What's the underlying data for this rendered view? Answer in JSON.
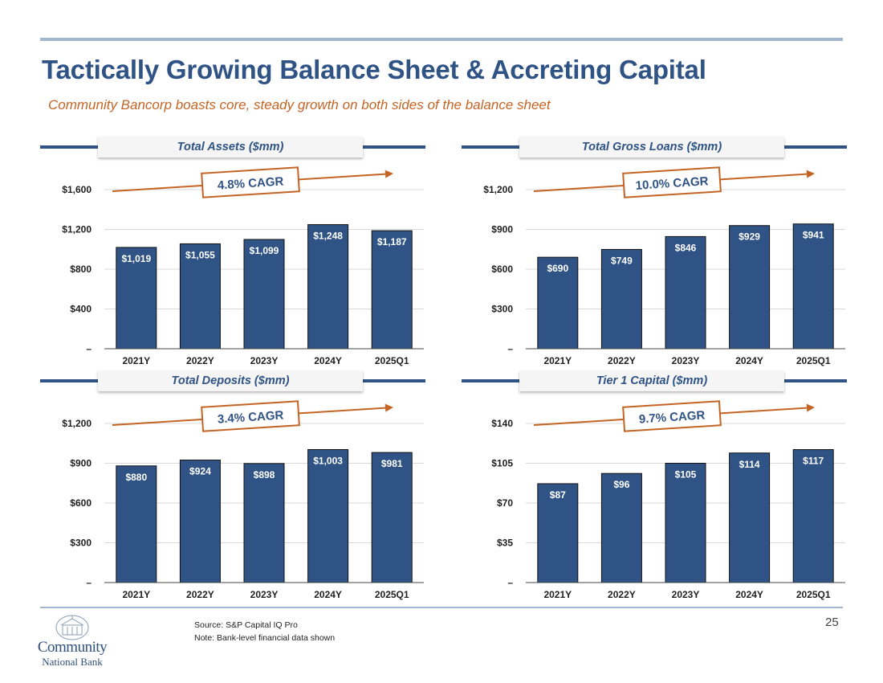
{
  "page": {
    "title": "Tactically Growing Balance Sheet & Accreting Capital",
    "subtitle": "Community Bancorp boasts core, steady growth on both sides of the balance sheet",
    "page_number": "25"
  },
  "footer": {
    "source": "Source: S&P Capital IQ Pro",
    "note": "Note: Bank-level financial data shown"
  },
  "logo": {
    "line1": "Community",
    "line2": "National Bank"
  },
  "colors": {
    "bar": "#2f5385",
    "accent": "#c46424",
    "title": "#2f5385",
    "rule": "#a4b6d2"
  },
  "chart_data": [
    {
      "type": "bar",
      "title": "Total Assets ($mm)",
      "categories": [
        "2021Y",
        "2022Y",
        "2023Y",
        "2024Y",
        "2025Q1"
      ],
      "values": [
        1019,
        1055,
        1099,
        1248,
        1187
      ],
      "value_labels": [
        "$1,019",
        "$1,055",
        "$1,099",
        "$1,248",
        "$1,187"
      ],
      "ylim": [
        0,
        1600
      ],
      "yticks": [
        0,
        400,
        800,
        1200,
        1600
      ],
      "ytick_labels": [
        "–",
        "$400",
        "$800",
        "$1,200",
        "$1,600"
      ],
      "cagr_label": "4.8% CAGR",
      "grid": true
    },
    {
      "type": "bar",
      "title": "Total Gross Loans ($mm)",
      "categories": [
        "2021Y",
        "2022Y",
        "2023Y",
        "2024Y",
        "2025Q1"
      ],
      "values": [
        690,
        749,
        846,
        929,
        941
      ],
      "value_labels": [
        "$690",
        "$749",
        "$846",
        "$929",
        "$941"
      ],
      "ylim": [
        0,
        1200
      ],
      "yticks": [
        0,
        300,
        600,
        900,
        1200
      ],
      "ytick_labels": [
        "–",
        "$300",
        "$600",
        "$900",
        "$1,200"
      ],
      "cagr_label": "10.0% CAGR",
      "grid": true
    },
    {
      "type": "bar",
      "title": "Total Deposits ($mm)",
      "categories": [
        "2021Y",
        "2022Y",
        "2023Y",
        "2024Y",
        "2025Q1"
      ],
      "values": [
        880,
        924,
        898,
        1003,
        981
      ],
      "value_labels": [
        "$880",
        "$924",
        "$898",
        "$1,003",
        "$981"
      ],
      "ylim": [
        0,
        1200
      ],
      "yticks": [
        0,
        300,
        600,
        900,
        1200
      ],
      "ytick_labels": [
        "–",
        "$300",
        "$600",
        "$900",
        "$1,200"
      ],
      "cagr_label": "3.4% CAGR",
      "grid": true
    },
    {
      "type": "bar",
      "title": "Tier 1 Capital ($mm)",
      "categories": [
        "2021Y",
        "2022Y",
        "2023Y",
        "2024Y",
        "2025Q1"
      ],
      "values": [
        87,
        96,
        105,
        114,
        117
      ],
      "value_labels": [
        "$87",
        "$96",
        "$105",
        "$114",
        "$117"
      ],
      "ylim": [
        0,
        140
      ],
      "yticks": [
        0,
        35,
        70,
        105,
        140
      ],
      "ytick_labels": [
        "–",
        "$35",
        "$70",
        "$105",
        "$140"
      ],
      "cagr_label": "9.7% CAGR",
      "grid": true
    }
  ]
}
